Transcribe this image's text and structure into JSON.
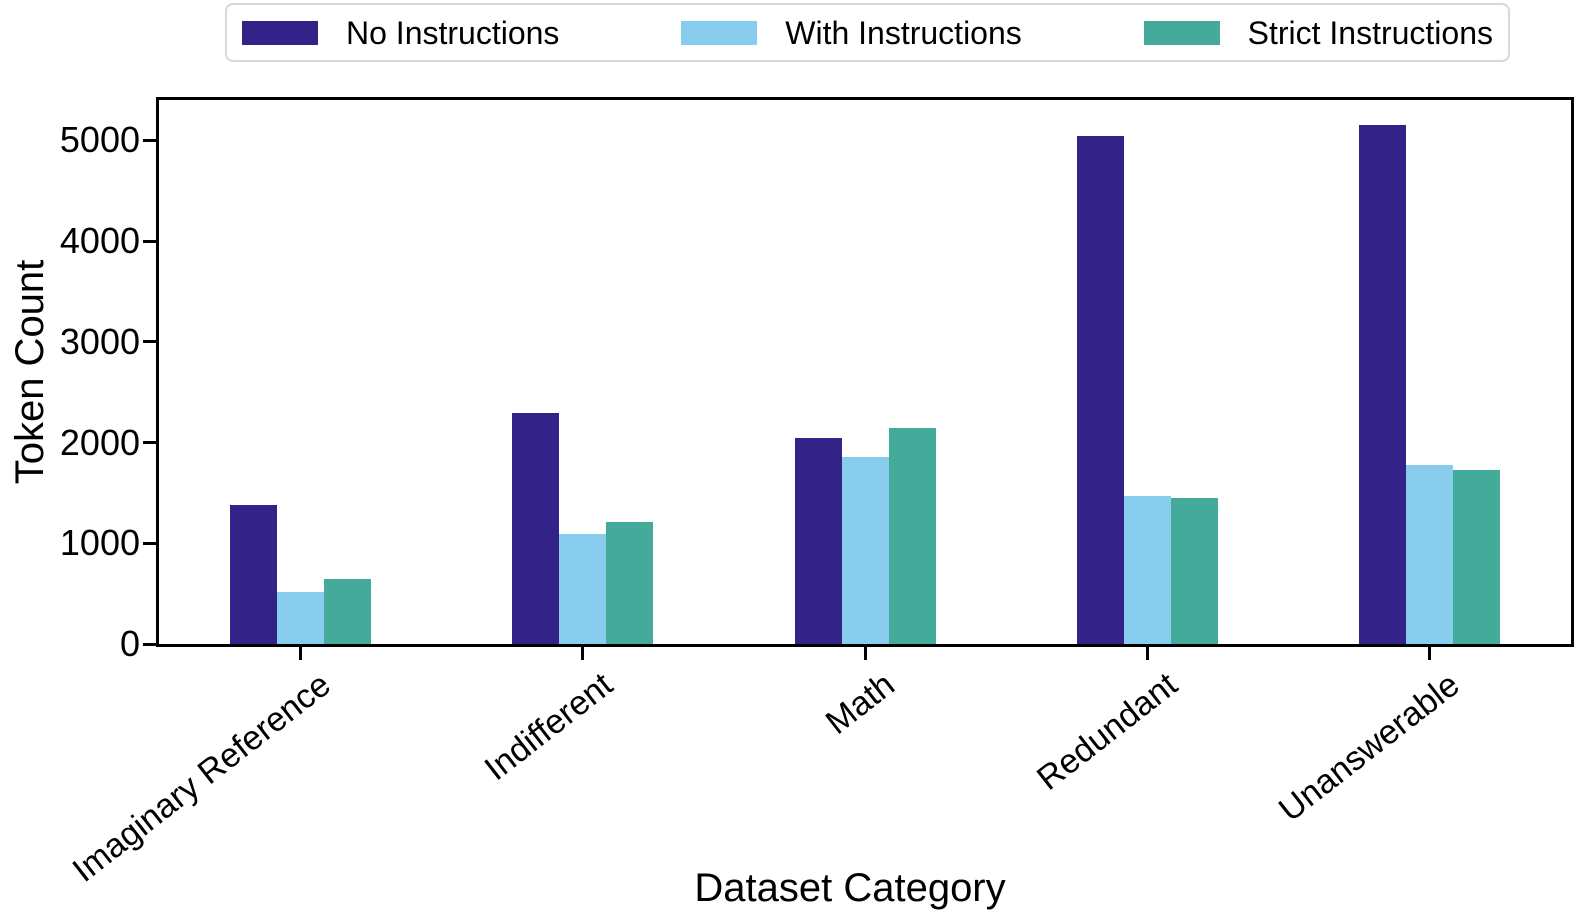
{
  "chart_data": {
    "type": "bar",
    "title": "",
    "xlabel": "Dataset Category",
    "ylabel": "Token Count",
    "categories": [
      "Imaginary Reference",
      "Indifferent",
      "Math",
      "Redundant",
      "Unanswerable"
    ],
    "series": [
      {
        "name": "No Instructions",
        "color": "#332288",
        "values": [
          1380,
          2290,
          2040,
          5040,
          5150
        ]
      },
      {
        "name": "With Instructions",
        "color": "#88CCEE",
        "values": [
          520,
          1090,
          1860,
          1470,
          1780
        ]
      },
      {
        "name": "Strict Instructions",
        "color": "#44AA99",
        "values": [
          650,
          1210,
          2140,
          1450,
          1730
        ]
      }
    ],
    "ylim": [
      0,
      5400
    ],
    "yticks": [
      0,
      1000,
      2000,
      3000,
      4000,
      5000
    ],
    "grid": false,
    "legend_position": "top",
    "x_tick_rotation_deg": 38,
    "axis_color": "#000000",
    "background_color": "#ffffff",
    "legend_border_color": "#d8d8d8"
  }
}
